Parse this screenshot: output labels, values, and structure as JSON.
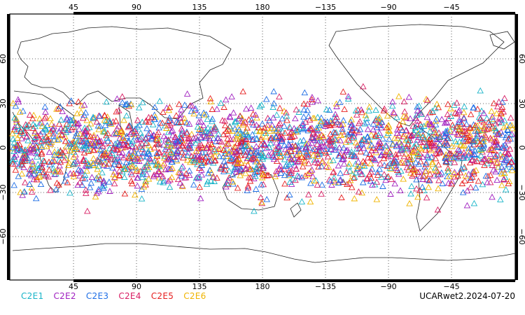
{
  "map": {
    "top_lon_ticks": [
      "45",
      "90",
      "135",
      "180",
      "−135",
      "−90",
      "−45"
    ],
    "bottom_lon_ticks": [
      "45",
      "90",
      "135",
      "180",
      "−135",
      "−90",
      "−45"
    ],
    "lat_ticks": [
      "60",
      "30",
      "0",
      "−30",
      "−60"
    ]
  },
  "legend": {
    "items": [
      {
        "label": "C2E1",
        "color": "#19b4c8"
      },
      {
        "label": "C2E2",
        "color": "#a020c0"
      },
      {
        "label": "C2E3",
        "color": "#1e6ee6"
      },
      {
        "label": "C2E4",
        "color": "#d81e64"
      },
      {
        "label": "C2E5",
        "color": "#e61e1e"
      },
      {
        "label": "C2E6",
        "color": "#f0b400"
      }
    ]
  },
  "dataset_label": "UCARwet2.2024-07-20"
}
